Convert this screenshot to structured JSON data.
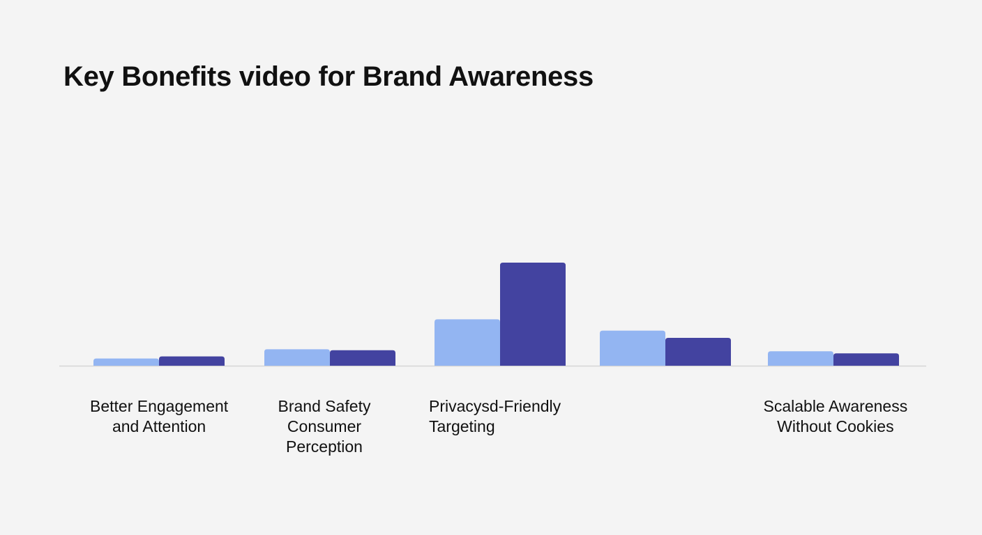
{
  "chart_data": {
    "type": "bar",
    "title": "Key Bonefits video for Brand Awareness",
    "xlabel": "",
    "ylabel": "",
    "grid": false,
    "legend": "none",
    "ylim": [
      0,
      100
    ],
    "categories": [
      [
        "Better Engagement",
        "and Attention"
      ],
      [
        "Brand Safety",
        "Consumer",
        "Perception"
      ],
      [
        "Privacysd-Friendly",
        "Targeting"
      ],
      [],
      [
        "Scalable Awareness",
        "Without Cookies"
      ]
    ],
    "series": [
      {
        "color": "#93b5f2",
        "values": [
          7,
          16,
          45,
          34,
          14
        ]
      },
      {
        "color": "#4343a0",
        "values": [
          9,
          15,
          100,
          27,
          12
        ]
      }
    ]
  }
}
